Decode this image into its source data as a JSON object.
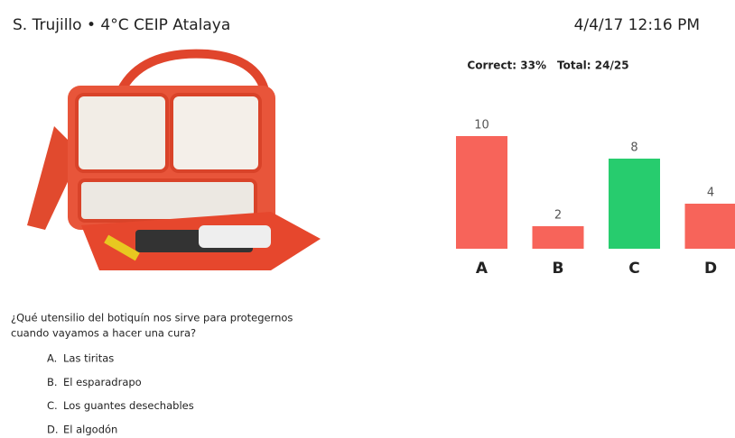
{
  "header": {
    "title": "S. Trujillo • 4°C CEIP Atalaya",
    "datetime": "4/4/17 12:16 PM"
  },
  "stats": {
    "correct": "Correct: 33%",
    "total": "Total: 24/25"
  },
  "chart_data": {
    "type": "bar",
    "categories": [
      "A",
      "B",
      "C",
      "D"
    ],
    "values": [
      10,
      2,
      8,
      4
    ],
    "colors": [
      "#f7645a",
      "#f7645a",
      "#27cc6e",
      "#f7645a"
    ]
  },
  "question": {
    "lines": [
      "¿Qué utensilio del botiquín nos sirve para protegernos",
      "cuando vayamos a hacer una cura?"
    ],
    "options": [
      {
        "letter": "A.",
        "text": "Las tiritas"
      },
      {
        "letter": "B.",
        "text": "El esparadrapo"
      },
      {
        "letter": "C.",
        "text": "Los guantes desechables"
      },
      {
        "letter": "D.",
        "text": "El algodón"
      }
    ]
  }
}
